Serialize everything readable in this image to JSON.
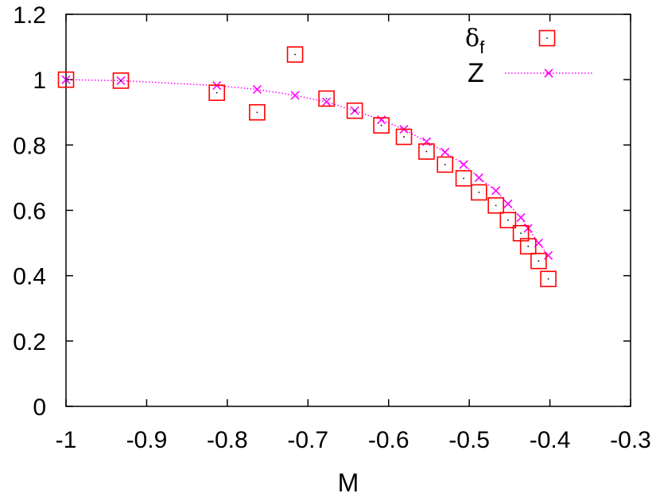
{
  "chart_data": {
    "type": "scatter",
    "xlabel": "M",
    "ylabel": "",
    "xlim": [
      -1,
      -0.3
    ],
    "ylim": [
      0,
      1.2
    ],
    "x_ticks": [
      "-1",
      "-0.9",
      "-0.8",
      "-0.7",
      "-0.6",
      "-0.5",
      "-0.4",
      "-0.3"
    ],
    "x_tick_values": [
      -1,
      -0.9,
      -0.8,
      -0.7,
      -0.6,
      -0.5,
      -0.4,
      -0.3
    ],
    "y_ticks": [
      "0",
      "0.2",
      "0.4",
      "0.6",
      "0.8",
      "1",
      "1.2"
    ],
    "y_tick_values": [
      0,
      0.2,
      0.4,
      0.6,
      0.8,
      1.0,
      1.2
    ],
    "grid": false,
    "legend_position": "top-right",
    "series": [
      {
        "name": "δf",
        "legend_main": "δ",
        "legend_sub": "f",
        "marker": "open-square",
        "color": "#ff0000",
        "x": [
          -1.0,
          -0.932,
          -0.813,
          -0.763,
          -0.716,
          -0.677,
          -0.642,
          -0.609,
          -0.581,
          -0.553,
          -0.53,
          -0.507,
          -0.488,
          -0.467,
          -0.452,
          -0.436,
          -0.427,
          -0.414,
          -0.402
        ],
        "y": [
          1.0,
          0.997,
          0.96,
          0.9,
          1.077,
          0.942,
          0.905,
          0.86,
          0.825,
          0.78,
          0.74,
          0.698,
          0.655,
          0.615,
          0.57,
          0.53,
          0.49,
          0.445,
          0.39
        ]
      },
      {
        "name": "Z",
        "legend_main": "Z",
        "marker": "x",
        "line_style": "dotted",
        "color": "#ff00ff",
        "x": [
          -1.0,
          -0.932,
          -0.813,
          -0.763,
          -0.716,
          -0.677,
          -0.642,
          -0.609,
          -0.581,
          -0.553,
          -0.53,
          -0.507,
          -0.488,
          -0.467,
          -0.452,
          -0.436,
          -0.427,
          -0.414,
          -0.402
        ],
        "y": [
          1.0,
          0.997,
          0.982,
          0.97,
          0.952,
          0.932,
          0.905,
          0.877,
          0.848,
          0.81,
          0.778,
          0.74,
          0.7,
          0.66,
          0.62,
          0.578,
          0.545,
          0.5,
          0.462
        ]
      }
    ]
  }
}
